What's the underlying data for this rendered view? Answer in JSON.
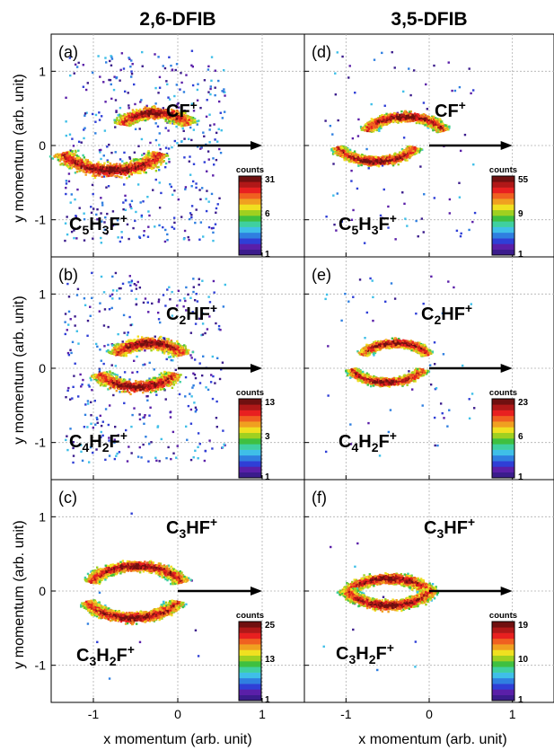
{
  "figure": {
    "col_titles": [
      "2,6-DFIB",
      "3,5-DFIB"
    ],
    "xlabel": "x momentum (arb. unit)",
    "ylabel": "y momentum (arb. unit)",
    "colorbar_title": "counts"
  },
  "chart_data": [
    {
      "type": "heatmap",
      "panel": "(a)",
      "molecule": "2,6-DFIB",
      "ions": [
        {
          "main": "CF",
          "sub": "",
          "sup": "+"
        },
        {
          "main": "C",
          "sub": "5",
          "main2": "H",
          "sub2": "3",
          "main3": "F",
          "sup": "+"
        }
      ],
      "arcs": [
        {
          "cx": -0.28,
          "cy": 0.2,
          "r": 0.42,
          "dir": "up",
          "spread": 0.12,
          "density": 380
        },
        {
          "cx": -0.8,
          "cy": 0.05,
          "r": 0.62,
          "dir": "down",
          "spread": 0.14,
          "density": 420
        }
      ],
      "noise": 420,
      "colorbar": {
        "ticks": [
          31,
          6,
          1
        ]
      },
      "xlim": [
        -1.5,
        1.5
      ],
      "ylim": [
        -1.5,
        1.5
      ],
      "xticks": [
        -1,
        0,
        1
      ],
      "yticks": [
        -1,
        0,
        1
      ],
      "arrow": {
        "from": [
          0,
          0
        ],
        "to": [
          1.0,
          0
        ]
      }
    },
    {
      "type": "heatmap",
      "panel": "(d)",
      "molecule": "3,5-DFIB",
      "ions": [
        {
          "main": "CF",
          "sub": "",
          "sup": "+"
        },
        {
          "main": "C",
          "sub": "5",
          "main2": "H",
          "sub2": "3",
          "main3": "F",
          "sup": "+"
        }
      ],
      "arcs": [
        {
          "cx": -0.3,
          "cy": 0.1,
          "r": 0.5,
          "dir": "up",
          "spread": 0.09,
          "density": 520
        },
        {
          "cx": -0.65,
          "cy": 0.1,
          "r": 0.5,
          "dir": "down",
          "spread": 0.09,
          "density": 520
        }
      ],
      "noise": 90,
      "colorbar": {
        "ticks": [
          55,
          9,
          1
        ]
      },
      "xlim": [
        -1.5,
        1.5
      ],
      "ylim": [
        -1.5,
        1.5
      ],
      "xticks": [
        -1,
        0,
        1
      ],
      "yticks": [
        -1,
        0,
        1
      ],
      "arrow": {
        "from": [
          0,
          0
        ],
        "to": [
          1.0,
          0
        ]
      }
    },
    {
      "type": "heatmap",
      "panel": "(b)",
      "molecule": "2,6-DFIB",
      "ions": [
        {
          "main": "C",
          "sub": "2",
          "main2": "HF",
          "sup": "+"
        },
        {
          "main": "C",
          "sub": "4",
          "main2": "H",
          "sub2": "2",
          "main3": "F",
          "sup": "+"
        }
      ],
      "arcs": [
        {
          "cx": -0.35,
          "cy": 0.1,
          "r": 0.42,
          "dir": "up",
          "spread": 0.12,
          "density": 380
        },
        {
          "cx": -0.5,
          "cy": 0.05,
          "r": 0.48,
          "dir": "down",
          "spread": 0.12,
          "density": 380
        }
      ],
      "noise": 360,
      "colorbar": {
        "ticks": [
          13,
          3,
          1
        ]
      },
      "xlim": [
        -1.5,
        1.5
      ],
      "ylim": [
        -1.5,
        1.5
      ],
      "xticks": [
        -1,
        0,
        1
      ],
      "yticks": [
        -1,
        0,
        1
      ],
      "arrow": {
        "from": [
          0,
          0
        ],
        "to": [
          1.0,
          0
        ]
      }
    },
    {
      "type": "heatmap",
      "panel": "(e)",
      "molecule": "3,5-DFIB",
      "ions": [
        {
          "main": "C",
          "sub": "2",
          "main2": "HF",
          "sup": "+"
        },
        {
          "main": "C",
          "sub": "4",
          "main2": "H",
          "sub2": "2",
          "main3": "F",
          "sup": "+"
        }
      ],
      "arcs": [
        {
          "cx": -0.42,
          "cy": 0.1,
          "r": 0.42,
          "dir": "up",
          "spread": 0.08,
          "density": 480
        },
        {
          "cx": -0.52,
          "cy": 0.1,
          "r": 0.46,
          "dir": "down",
          "spread": 0.08,
          "density": 480
        }
      ],
      "noise": 60,
      "colorbar": {
        "ticks": [
          23,
          6,
          1
        ]
      },
      "xlim": [
        -1.5,
        1.5
      ],
      "ylim": [
        -1.5,
        1.5
      ],
      "xticks": [
        -1,
        0,
        1
      ],
      "yticks": [
        -1,
        0,
        1
      ],
      "arrow": {
        "from": [
          0,
          0
        ],
        "to": [
          1.0,
          0
        ]
      }
    },
    {
      "type": "heatmap",
      "panel": "(c)",
      "molecule": "2,6-DFIB",
      "ions": [
        {
          "main": "C",
          "sub": "3",
          "main2": "HF",
          "sup": "+"
        },
        {
          "main": "C",
          "sub": "3",
          "main2": "H",
          "sub2": "2",
          "main3": "F",
          "sup": "+"
        }
      ],
      "arcs": [
        {
          "cx": -0.5,
          "cy": 0.0,
          "r": 0.58,
          "dir": "up",
          "spread": 0.1,
          "density": 650,
          "fill": true
        },
        {
          "cx": -0.55,
          "cy": 0.0,
          "r": 0.58,
          "dir": "down",
          "spread": 0.1,
          "density": 650,
          "fill": true
        }
      ],
      "noise": 10,
      "colorbar": {
        "ticks": [
          25,
          13,
          1
        ]
      },
      "xlim": [
        -1.5,
        1.5
      ],
      "ylim": [
        -1.5,
        1.5
      ],
      "xticks": [
        -1,
        0,
        1
      ],
      "yticks": [
        -1,
        0,
        1
      ],
      "arrow": {
        "from": [
          0,
          0
        ],
        "to": [
          1.0,
          0
        ]
      }
    },
    {
      "type": "heatmap",
      "panel": "(f)",
      "molecule": "3,5-DFIB",
      "ions": [
        {
          "main": "C",
          "sub": "3",
          "main2": "HF",
          "sup": "+"
        },
        {
          "main": "C",
          "sub": "3",
          "main2": "H",
          "sub2": "2",
          "main3": "F",
          "sup": "+"
        }
      ],
      "arcs": [
        {
          "cx": -0.5,
          "cy": -0.15,
          "r": 0.55,
          "dir": "up",
          "spread": 0.1,
          "density": 650,
          "fill": true
        },
        {
          "cx": -0.5,
          "cy": 0.15,
          "r": 0.55,
          "dir": "down",
          "spread": 0.1,
          "density": 650,
          "fill": true
        }
      ],
      "noise": 10,
      "colorbar": {
        "ticks": [
          19,
          10,
          1
        ]
      },
      "xlim": [
        -1.5,
        1.5
      ],
      "ylim": [
        -1.5,
        1.5
      ],
      "xticks": [
        -1,
        0,
        1
      ],
      "yticks": [
        -1,
        0,
        1
      ],
      "arrow": {
        "from": [
          0,
          0
        ],
        "to": [
          1.0,
          0
        ]
      }
    }
  ]
}
